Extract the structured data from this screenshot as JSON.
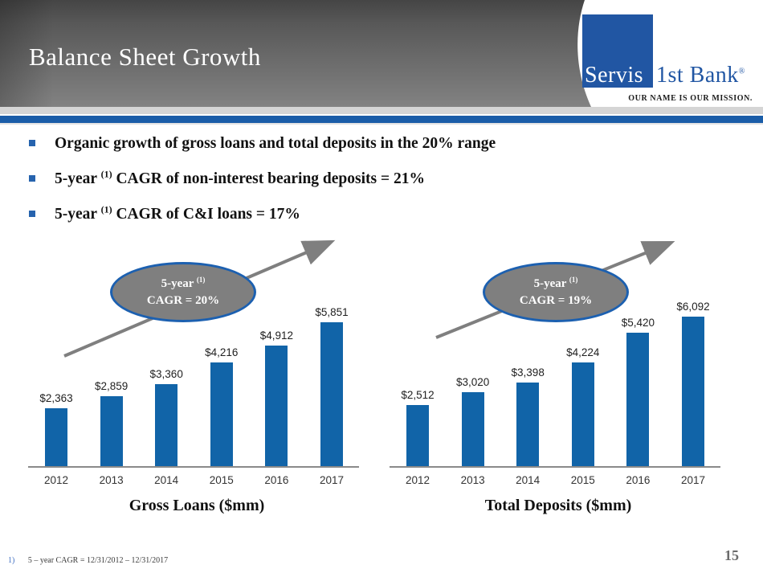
{
  "slide": {
    "title": "Balance Sheet Growth",
    "page_number": "15"
  },
  "logo": {
    "square_text": "Servis",
    "rest_text": "1st Bank",
    "registered_mark": "®",
    "tagline": "OUR NAME IS OUR MISSION.",
    "brand_blue": "#2156a3",
    "stripe_blue": "#1a5da8"
  },
  "bullets": [
    {
      "pre": "Organic growth of gross loans and total deposits in the 20% range",
      "sup": "",
      "post": ""
    },
    {
      "pre": "5-year ",
      "sup": "(1)",
      "post": " CAGR of non-interest bearing deposits = 21%"
    },
    {
      "pre": "5-year ",
      "sup": "(1)",
      "post": " CAGR of C&I loans = 17%"
    }
  ],
  "footnote": {
    "marker": "1)",
    "text": "5 – year CAGR = 12/31/2012 – 12/31/2017"
  },
  "chart_data": [
    {
      "type": "bar",
      "title": "Gross Loans ($mm)",
      "categories": [
        "2012",
        "2013",
        "2014",
        "2015",
        "2016",
        "2017"
      ],
      "values": [
        2363,
        2859,
        3360,
        4216,
        4912,
        5851
      ],
      "labels": [
        "$2,363",
        "$2,859",
        "$3,360",
        "$4,216",
        "$4,912",
        "$5,851"
      ],
      "ylim": [
        0,
        6500
      ],
      "xlabel": "",
      "ylabel": "",
      "grid": false,
      "legend": "none",
      "bar_color": "#1164a8",
      "annotation": {
        "line1_pre": "5-year ",
        "line1_sup": "(1)",
        "line2": "CAGR = 20%"
      }
    },
    {
      "type": "bar",
      "title": "Total Deposits ($mm)",
      "categories": [
        "2012",
        "2013",
        "2014",
        "2015",
        "2016",
        "2017"
      ],
      "values": [
        2512,
        3020,
        3398,
        4224,
        5420,
        6092
      ],
      "labels": [
        "$2,512",
        "$3,020",
        "$3,398",
        "$4,224",
        "$5,420",
        "$6,092"
      ],
      "ylim": [
        0,
        6500
      ],
      "xlabel": "",
      "ylabel": "",
      "grid": false,
      "legend": "none",
      "bar_color": "#1164a8",
      "annotation": {
        "line1_pre": "5-year ",
        "line1_sup": "(1)",
        "line2": "CAGR = 19%"
      }
    }
  ]
}
